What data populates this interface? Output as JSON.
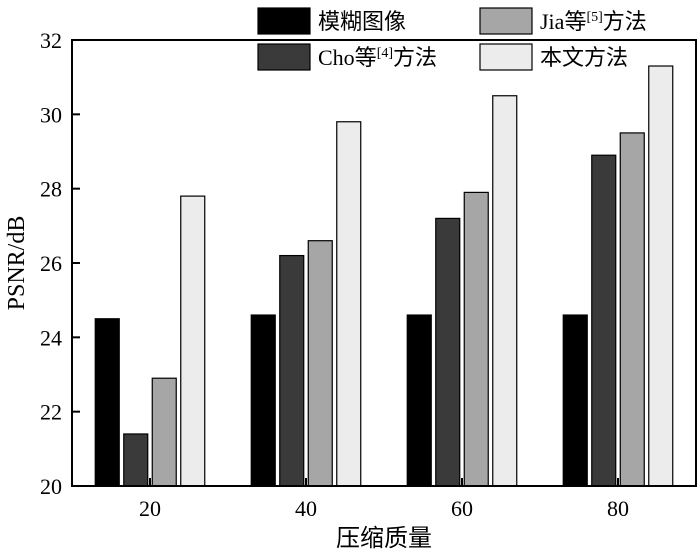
{
  "chart_data": {
    "type": "bar",
    "title": "",
    "xlabel": "压缩质量",
    "ylabel": "PSNR/dB",
    "categories": [
      "20",
      "40",
      "60",
      "80"
    ],
    "ylim": [
      20,
      32
    ],
    "yticks": [
      20,
      22,
      24,
      26,
      28,
      30,
      32
    ],
    "grid": false,
    "legend_position": "top",
    "series": [
      {
        "name": "模糊图像",
        "color": "#000000",
        "values": [
          24.5,
          24.6,
          24.6,
          24.6
        ]
      },
      {
        "name": "Cho等[4]方法",
        "color": "#3a3a3a",
        "values": [
          21.4,
          26.2,
          27.2,
          28.9
        ]
      },
      {
        "name": "Jia等[5]方法",
        "color": "#a6a6a6",
        "values": [
          22.9,
          26.6,
          27.9,
          29.5
        ]
      },
      {
        "name": "本文方法",
        "color": "#ececec",
        "values": [
          27.8,
          29.8,
          30.5,
          31.3
        ]
      }
    ],
    "legend": {
      "items": [
        {
          "label": "模糊图像",
          "base": "模糊图像",
          "sup": "",
          "tail": ""
        },
        {
          "label": "Jia等[5]方法",
          "base": "Jia等",
          "sup": "[5]",
          "tail": "方法"
        },
        {
          "label": "Cho等[4]方法",
          "base": "Cho等",
          "sup": "[4]",
          "tail": "方法"
        },
        {
          "label": "本文方法",
          "base": "本文方法",
          "sup": "",
          "tail": ""
        }
      ]
    }
  }
}
